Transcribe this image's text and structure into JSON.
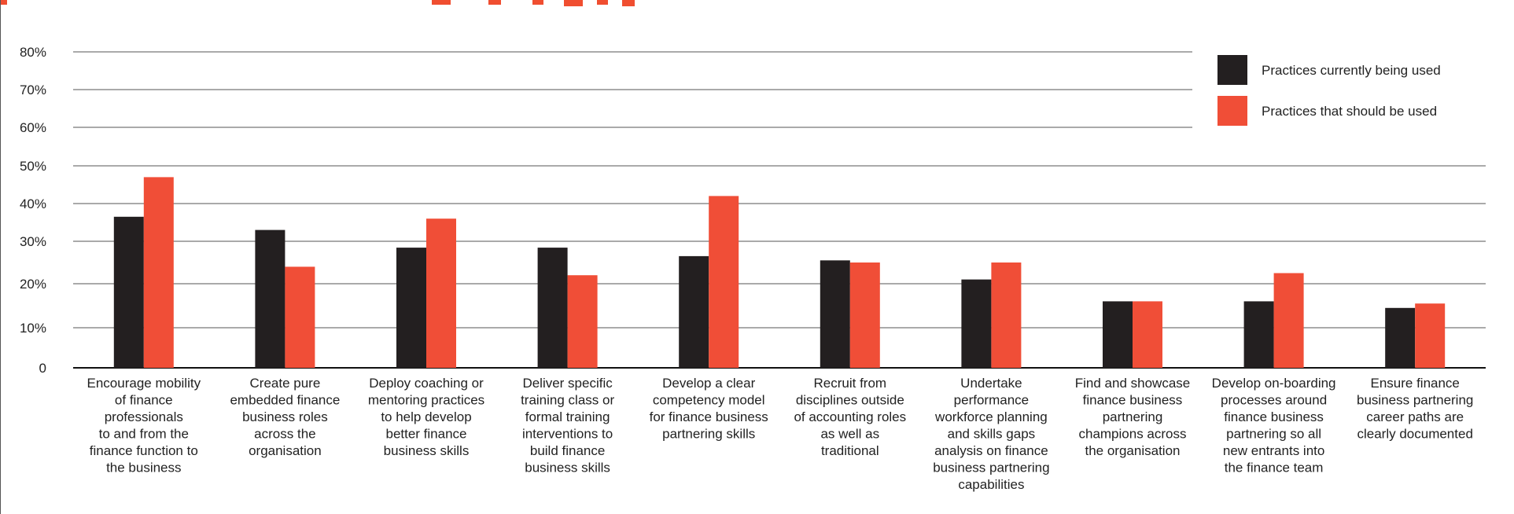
{
  "chart_data": {
    "type": "bar",
    "title": "",
    "xlabel": "",
    "ylabel": "",
    "ylim": [
      0,
      80
    ],
    "yticks": [
      {
        "value": 0,
        "label": "0"
      },
      {
        "value": 10,
        "label": "10%"
      },
      {
        "value": 20,
        "label": "20%"
      },
      {
        "value": 30,
        "label": "30%"
      },
      {
        "value": 40,
        "label": "40%"
      },
      {
        "value": 50,
        "label": "50%"
      },
      {
        "value": 60,
        "label": "60%"
      },
      {
        "value": 70,
        "label": "70%"
      },
      {
        "value": 80,
        "label": "80%"
      }
    ],
    "grid": true,
    "legend_position": "top-right",
    "categories": [
      [
        "Encourage mobility",
        "of finance",
        "professionals",
        "to and from the",
        "finance function to",
        "the business"
      ],
      [
        "Create pure",
        "embedded finance",
        "business roles",
        "across the",
        "organisation"
      ],
      [
        "Deploy coaching or",
        "mentoring practices",
        "to help develop",
        "better finance",
        "business skills"
      ],
      [
        "Deliver specific",
        "training class or",
        "formal training",
        "interventions to",
        "build finance",
        "business skills"
      ],
      [
        "Develop a clear",
        "competency model",
        "for finance business",
        "partnering skills"
      ],
      [
        "Recruit from",
        "disciplines outside",
        "of accounting roles",
        "as well as",
        "traditional"
      ],
      [
        "Undertake",
        "performance",
        "workforce planning",
        "and skills gaps",
        "analysis on finance",
        "business partnering",
        "capabilities"
      ],
      [
        "Find and showcase",
        "finance business",
        "partnering",
        "champions across",
        "the organisation"
      ],
      [
        "Develop on-boarding",
        "processes around",
        "finance business",
        "partnering so all",
        "new entrants into",
        "the finance team"
      ],
      [
        "Ensure finance",
        "business partnering",
        "career paths are",
        "clearly documented"
      ]
    ],
    "series": [
      {
        "name": "Practices currently being used",
        "color": "#231f20",
        "values": [
          36.5,
          33,
          28.5,
          28.5,
          26.5,
          25.5,
          21,
          16,
          16,
          14.5
        ]
      },
      {
        "name": "Practices that should be used",
        "color": "#f04e37",
        "values": [
          47,
          24,
          36,
          22,
          42,
          25,
          25,
          16,
          22.5,
          15.5
        ]
      }
    ]
  }
}
